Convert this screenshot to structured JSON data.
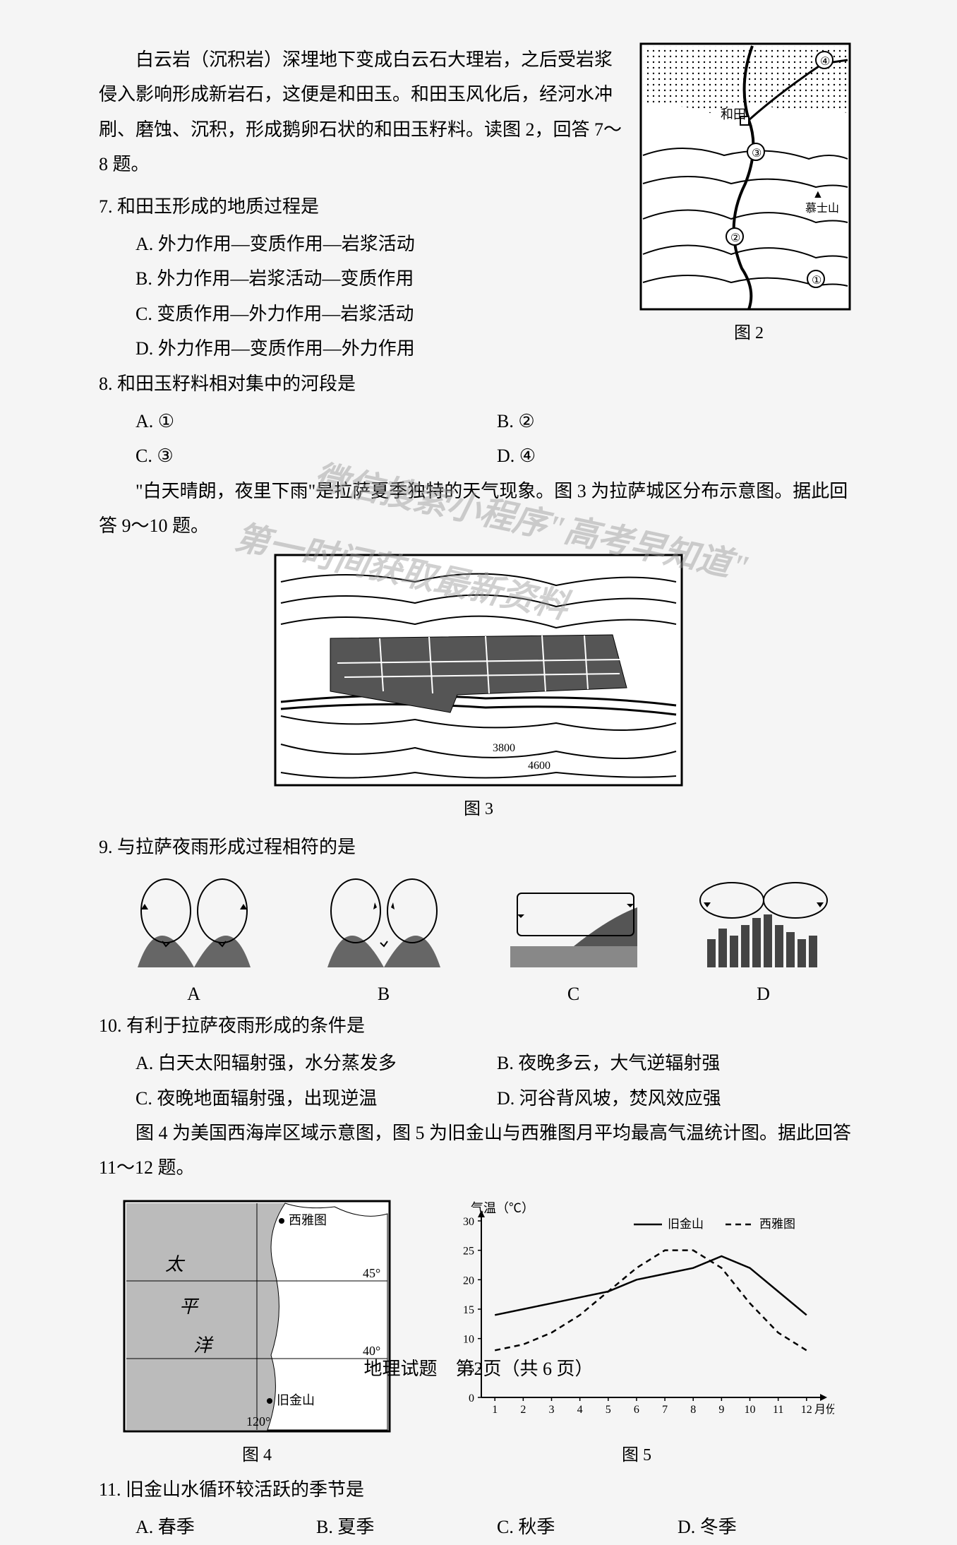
{
  "passage1": "白云岩（沉积岩）深埋地下变成白云石大理岩，之后受岩浆侵入影响形成新岩石，这便是和田玉。和田玉风化后，经河水冲刷、磨蚀、沉积，形成鹅卵石状的和田玉籽料。读图 2，回答 7～8 题。",
  "q7": {
    "stem": "7. 和田玉形成的地质过程是",
    "A": "A. 外力作用—变质作用—岩浆活动",
    "B": "B. 外力作用—岩浆活动—变质作用",
    "C": "C. 变质作用—外力作用—岩浆活动",
    "D": "D. 外力作用—变质作用—外力作用"
  },
  "q8": {
    "stem": "8. 和田玉籽料相对集中的河段是",
    "A": "A. ①",
    "B": "B. ②",
    "C": "C. ③",
    "D": "D. ④"
  },
  "fig2": {
    "caption": "图 2",
    "labels": {
      "hetian": "和田",
      "mountain": "慕士山",
      "n1": "①",
      "n2": "②",
      "n3": "③",
      "n4": "④"
    }
  },
  "passage2": "\"白天晴朗，夜里下雨\"是拉萨夏季独特的天气现象。图 3 为拉萨城区分布示意图。据此回答 9～10 题。",
  "fig3": {
    "caption": "图 3",
    "contours": [
      "3800",
      "4600"
    ]
  },
  "q9": {
    "stem": "9. 与拉萨夜雨形成过程相符的是",
    "A": "A",
    "B": "B",
    "C": "C",
    "D": "D"
  },
  "q10": {
    "stem": "10. 有利于拉萨夜雨形成的条件是",
    "A": "A. 白天太阳辐射强，水分蒸发多",
    "B": "B. 夜晚多云，大气逆辐射强",
    "C": "C. 夜晚地面辐射强，出现逆温",
    "D": "D. 河谷背风坡，焚风效应强"
  },
  "passage3": "图 4 为美国西海岸区域示意图，图 5 为旧金山与西雅图月平均最高气温统计图。据此回答 11～12 题。",
  "fig4": {
    "caption": "图 4",
    "labels": {
      "ocean1": "太",
      "ocean2": "平",
      "ocean3": "洋",
      "seattle": "西雅图",
      "sf": "旧金山",
      "lat45": "45°",
      "lat40": "40°",
      "lon120": "120°"
    }
  },
  "fig5": {
    "caption": "图 5",
    "ylabel": "气温（℃）",
    "xlabel_suffix": "月份",
    "legend": {
      "sf": "旧金山",
      "seattle": "西雅图"
    },
    "yticks": [
      0,
      5,
      10,
      15,
      20,
      25,
      30
    ],
    "xticks": [
      1,
      2,
      3,
      4,
      5,
      6,
      7,
      8,
      9,
      10,
      11,
      12
    ],
    "sf_data": [
      14,
      15,
      16,
      17,
      18,
      20,
      21,
      22,
      24,
      22,
      18,
      14
    ],
    "seattle_data": [
      8,
      9,
      11,
      14,
      18,
      22,
      25,
      25,
      22,
      16,
      11,
      8
    ],
    "colors": {
      "axis": "#000000",
      "sf_line": "#000000",
      "seattle_line": "#000000",
      "grid": "#cccccc"
    }
  },
  "q11": {
    "stem": "11. 旧金山水循环较活跃的季节是",
    "A": "A. 春季",
    "B": "B. 夏季",
    "C": "C. 秋季",
    "D": "D. 冬季"
  },
  "footer": "地理试题　第2页（共 6 页）",
  "watermark": {
    "line1": "微信搜索小程序\"高考早知道\"",
    "line2": "第一时间获取最新资料"
  }
}
